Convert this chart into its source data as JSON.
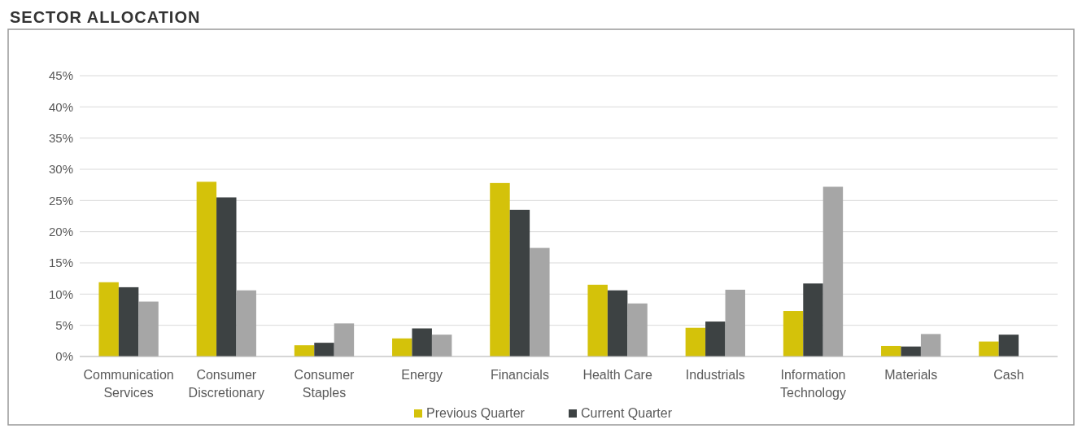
{
  "chart_data": {
    "type": "bar",
    "title": "SECTOR ALLOCATION",
    "categories": [
      "Communication Services",
      "Consumer Discretionary",
      "Consumer Staples",
      "Energy",
      "Financials",
      "Health Care",
      "Industrials",
      "Information Technology",
      "Materials",
      "Cash"
    ],
    "series": [
      {
        "name": "Previous Quarter",
        "color": "#d4c20a",
        "values": [
          11.9,
          28.0,
          1.8,
          2.9,
          27.8,
          11.5,
          4.6,
          7.3,
          1.7,
          2.4
        ]
      },
      {
        "name": "Current Quarter",
        "color": "#3d4243",
        "values": [
          11.1,
          25.5,
          2.2,
          4.5,
          23.5,
          10.6,
          5.6,
          11.7,
          1.6,
          3.5
        ]
      },
      {
        "color": "#a6a6a6",
        "values": [
          8.8,
          10.6,
          5.3,
          3.5,
          17.4,
          8.5,
          10.7,
          27.2,
          3.6,
          null
        ]
      }
    ],
    "ylim": [
      0,
      45
    ],
    "yticks": [
      {
        "value": 0,
        "label": "0%"
      },
      {
        "value": 5,
        "label": "5%"
      },
      {
        "value": 10,
        "label": "10%"
      },
      {
        "value": 15,
        "label": "15%"
      },
      {
        "value": 20,
        "label": "20%"
      },
      {
        "value": 25,
        "label": "25%"
      },
      {
        "value": 30,
        "label": "30%"
      },
      {
        "value": 35,
        "label": "35%"
      },
      {
        "value": 40,
        "label": "40%"
      },
      {
        "value": 45,
        "label": "45%"
      }
    ],
    "grid": "y",
    "legend": "bottom"
  }
}
